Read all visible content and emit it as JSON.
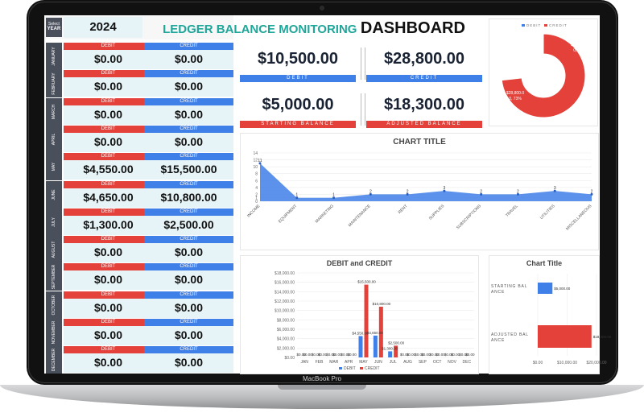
{
  "device": {
    "brand": "MacBook Pro"
  },
  "year_selector": {
    "label_top": "Select",
    "label_bottom": "YEAR",
    "value": "2024"
  },
  "header": {
    "title_part1": "LEDGER BALANCE MONITORING",
    "title_part2": "DASHBOARD"
  },
  "column_labels": {
    "debit": "DEBIT",
    "credit": "CREDIT"
  },
  "months": [
    {
      "name": "JANUARY",
      "debit": "$0.00",
      "credit": "$0.00"
    },
    {
      "name": "FEBRUARY",
      "debit": "$0.00",
      "credit": "$0.00"
    },
    {
      "name": "MARCH",
      "debit": "$0.00",
      "credit": "$0.00"
    },
    {
      "name": "APRIL",
      "debit": "$0.00",
      "credit": "$0.00"
    },
    {
      "name": "MAY",
      "debit": "$4,550.00",
      "credit": "$15,500.00"
    },
    {
      "name": "JUNE",
      "debit": "$4,650.00",
      "credit": "$10,800.00"
    },
    {
      "name": "JULY",
      "debit": "$1,300.00",
      "credit": "$2,500.00"
    },
    {
      "name": "AUGUST",
      "debit": "$0.00",
      "credit": "$0.00"
    },
    {
      "name": "SEPTEMBER",
      "debit": "$0.00",
      "credit": "$0.00"
    },
    {
      "name": "OCTOBER",
      "debit": "$0.00",
      "credit": "$0.00"
    },
    {
      "name": "NOVEMBER",
      "debit": "$0.00",
      "credit": "$0.00"
    },
    {
      "name": "DECEMBER",
      "debit": "$0.00",
      "credit": "$0.00"
    }
  ],
  "kpis": {
    "debit": {
      "value": "$10,500.00",
      "caption": "DEBIT"
    },
    "credit": {
      "value": "$28,800.00",
      "caption": "CREDIT"
    },
    "starting": {
      "value": "$5,000.00",
      "caption": "STARTING BALANCE"
    },
    "adjusted": {
      "value": "$18,300.00",
      "caption": "ADJUSTED BALANCE"
    }
  },
  "colors": {
    "debit": "#3f7fe8",
    "credit": "#e3413a",
    "title_teal": "#1fa69a",
    "month_label_bg": "#4a4f5c",
    "cell_bg": "#e6f4f7"
  },
  "chart_data": [
    {
      "type": "pie",
      "style": "donut",
      "legend": [
        "DEBIT",
        "CREDIT"
      ],
      "slices": [
        {
          "name": "DEBIT",
          "value": 10500,
          "label": "$10,500.0 0, 27%"
        },
        {
          "name": "CREDIT",
          "value": 28800,
          "label": "$28,800.0 0, 73%"
        }
      ]
    },
    {
      "type": "area",
      "title": "CHART TITLE",
      "categories": [
        "INCOME",
        "EQUIPMENT",
        "MARKETING",
        "MAINTENANCE",
        "RENT",
        "SUPPLIES",
        "SUBSCRIPTIONS",
        "TRAVEL",
        "UTILITIES",
        "MISCELLANEOUS"
      ],
      "values": [
        11,
        1,
        1,
        2,
        2,
        3,
        2,
        2,
        3,
        2
      ],
      "ylim": [
        0,
        14
      ],
      "yticks": [
        0,
        1,
        2,
        4,
        6,
        8,
        10,
        12,
        14
      ],
      "grid": true
    },
    {
      "type": "bar",
      "title": "DEBIT and CREDIT",
      "categories": [
        "JAN",
        "FEB",
        "MAR",
        "APR",
        "MAY",
        "JUN",
        "JUL",
        "AUG",
        "SEP",
        "OCT",
        "NOV",
        "DEC"
      ],
      "series": [
        {
          "name": "DEBIT",
          "values": [
            0,
            0,
            0,
            0,
            4550,
            4650,
            1300,
            0,
            0,
            0,
            0,
            0
          ]
        },
        {
          "name": "CREDIT",
          "values": [
            0,
            0,
            0,
            0,
            15500,
            10800,
            2500,
            0,
            0,
            0,
            0,
            0
          ]
        }
      ],
      "data_labels": [
        "$0.00",
        "$0.00",
        "$0.00",
        "$0.00",
        "$0.00",
        "$0.00",
        "$0.00",
        "$0.00",
        "$4,550.00",
        "$15,500.00",
        "$4,650.00",
        "$10,800.00",
        "$1,300.00",
        "$2,500.00",
        "$0.00",
        "$0.00",
        "$0.00",
        "$0.00",
        "$0.00",
        "$0.00",
        "$0.00",
        "$0.00",
        "$0.00",
        "$0.00"
      ],
      "ylim": [
        0,
        18000
      ],
      "yticks": [
        "$0.00",
        "$2,000.00",
        "$4,000.00",
        "$6,000.00",
        "$8,000.00",
        "$10,000.00",
        "$12,000.00",
        "$14,000.00",
        "$16,000.00",
        "$18,000.00"
      ],
      "legend_position": "bottom",
      "grid": true
    },
    {
      "type": "bar",
      "orientation": "horizontal",
      "title": "Chart Title",
      "categories": [
        "STARTING BAL ANCE",
        "ADJUSTED BAL ANCE"
      ],
      "values": [
        5000,
        18300
      ],
      "value_labels": [
        "$5,000.00",
        "$18,300.00"
      ],
      "xlim": [
        0,
        20000
      ],
      "xticks": [
        "$0.00",
        "$10,000.00",
        "$20,000.00"
      ]
    }
  ]
}
